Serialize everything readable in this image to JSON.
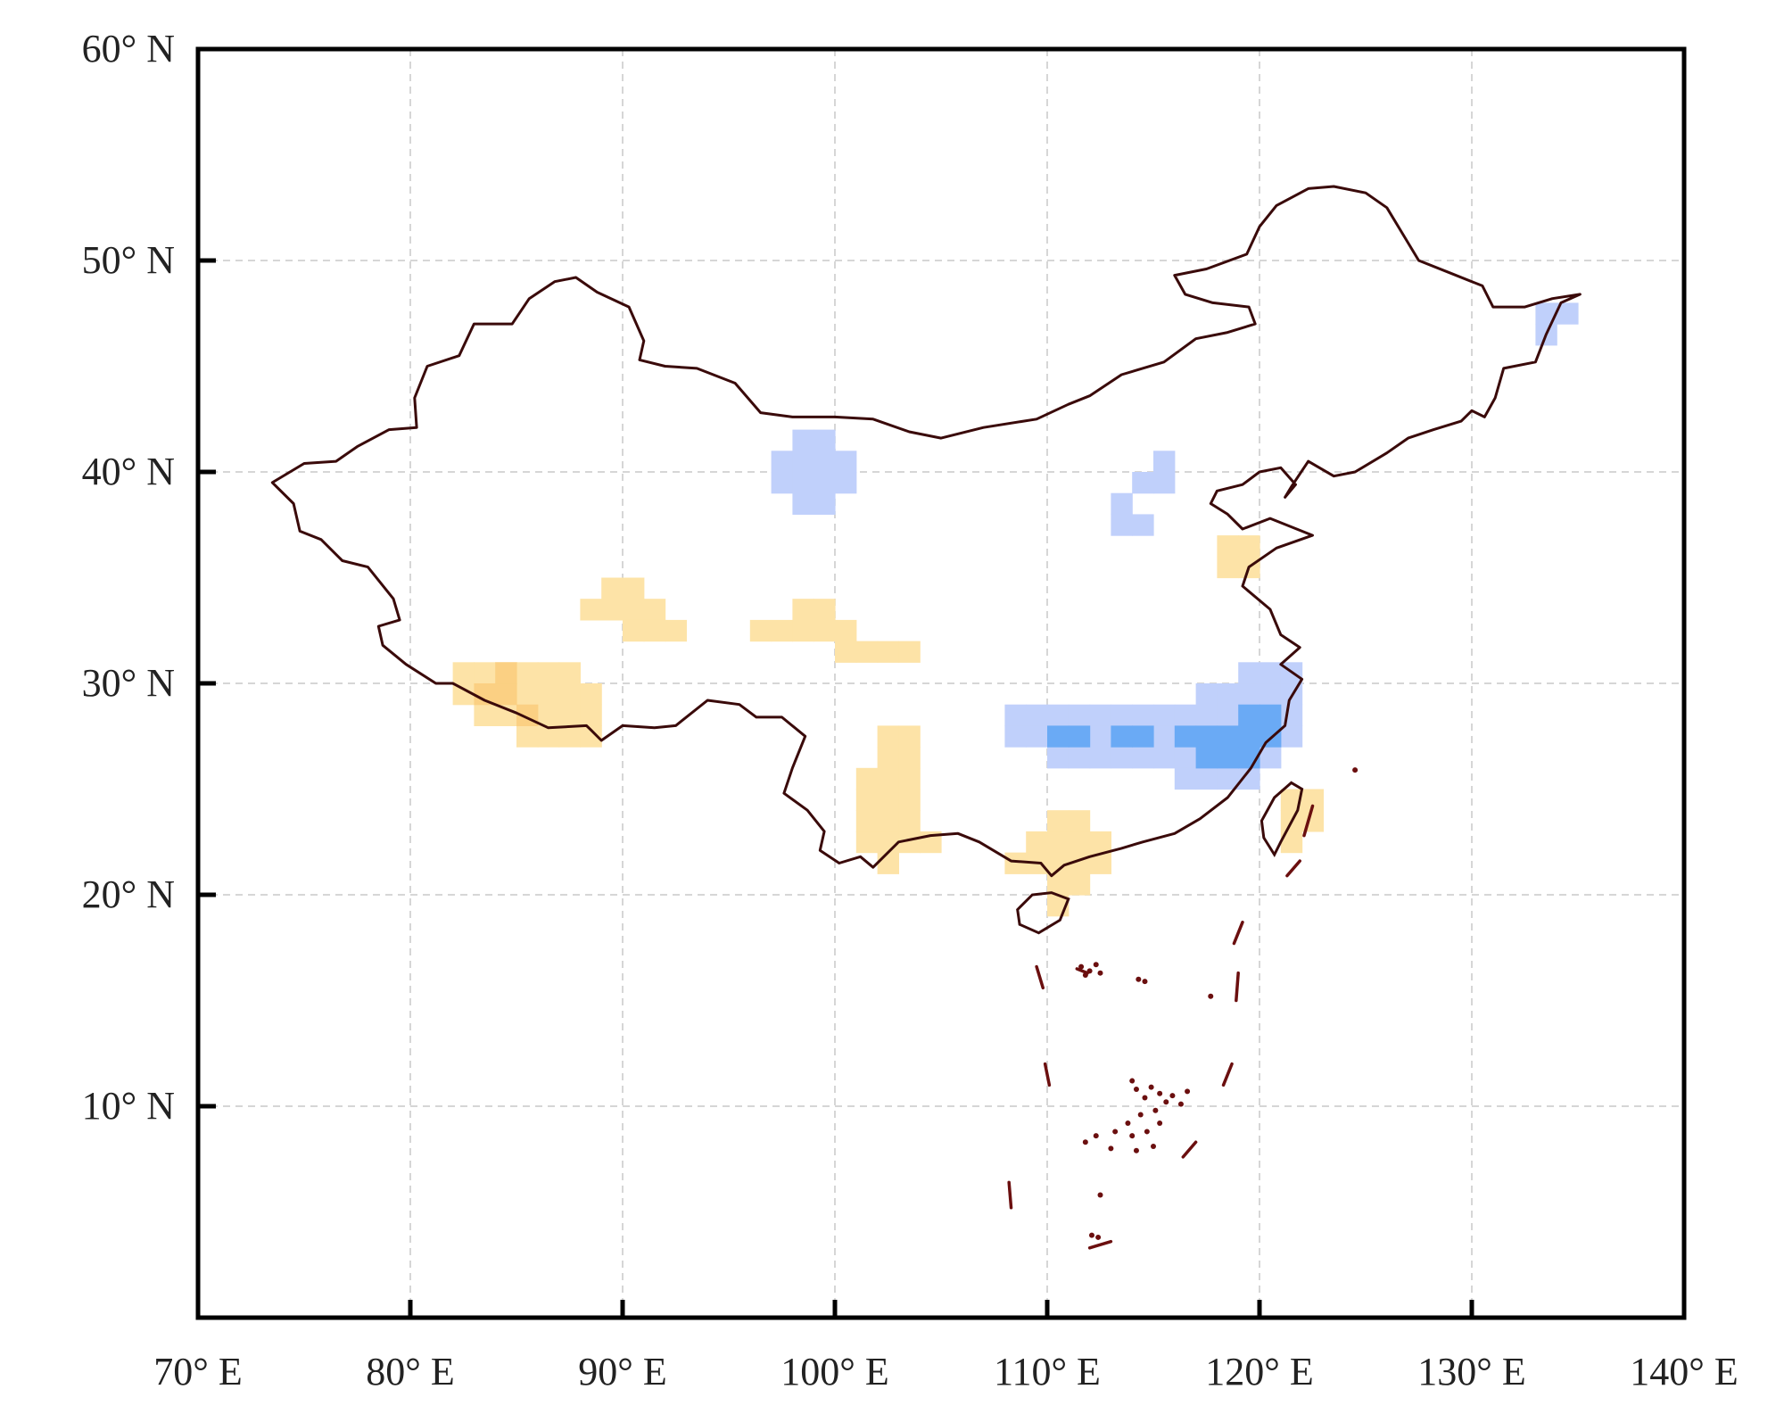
{
  "map": {
    "type": "map",
    "lon_range": [
      70,
      140
    ],
    "lat_range": [
      0,
      60
    ],
    "lat_axis": {
      "ticks": [
        10,
        20,
        30,
        40,
        50,
        60
      ],
      "labels": [
        "10° N",
        "20° N",
        "30° N",
        "40° N",
        "50° N",
        "60° N"
      ]
    },
    "lon_axis": {
      "ticks": [
        70,
        80,
        90,
        100,
        110,
        120,
        130,
        140
      ],
      "labels": [
        "70° E",
        "80° E",
        "90° E",
        "100° E",
        "110° E",
        "120° E",
        "130° E",
        "140° E"
      ]
    },
    "grid": true,
    "colors": {
      "border": "#3a0a0a",
      "island_lines": "#6b0f0f",
      "grid": "#c8c8c8",
      "frame": "#000000",
      "negative_light": "#c0d0fb",
      "negative_strong": "#6aaaf5",
      "positive_light": "#fde3a7",
      "positive_strong": "#fbd083"
    },
    "anomaly_patches": [
      {
        "sign": "negative",
        "level": "light",
        "cells": [
          [
            97,
            41
          ],
          [
            98,
            41
          ],
          [
            99,
            41
          ],
          [
            100,
            41
          ],
          [
            97,
            40
          ],
          [
            98,
            40
          ],
          [
            99,
            40
          ],
          [
            100,
            40
          ],
          [
            98,
            39
          ],
          [
            99,
            39
          ],
          [
            98,
            42
          ],
          [
            99,
            42
          ]
        ]
      },
      {
        "sign": "negative",
        "level": "light",
        "cells": [
          [
            113,
            38
          ],
          [
            114,
            38
          ],
          [
            113,
            39
          ],
          [
            114,
            40
          ],
          [
            115,
            41
          ],
          [
            115,
            40
          ]
        ]
      },
      {
        "sign": "negative",
        "level": "light",
        "cells": [
          [
            133,
            48
          ],
          [
            134,
            48
          ],
          [
            133,
            47
          ]
        ]
      },
      {
        "sign": "negative",
        "level": "light",
        "cells": [
          [
            108,
            29
          ],
          [
            109,
            29
          ],
          [
            110,
            29
          ],
          [
            111,
            29
          ],
          [
            112,
            29
          ],
          [
            113,
            29
          ],
          [
            114,
            29
          ],
          [
            115,
            29
          ],
          [
            116,
            29
          ],
          [
            117,
            29
          ],
          [
            118,
            29
          ],
          [
            119,
            29
          ],
          [
            120,
            29
          ],
          [
            121,
            29
          ],
          [
            108,
            28
          ],
          [
            109,
            28
          ],
          [
            110,
            28
          ],
          [
            111,
            28
          ],
          [
            112,
            28
          ],
          [
            113,
            28
          ],
          [
            114,
            28
          ],
          [
            115,
            28
          ],
          [
            116,
            28
          ],
          [
            117,
            28
          ],
          [
            118,
            28
          ],
          [
            119,
            28
          ],
          [
            120,
            28
          ],
          [
            121,
            28
          ],
          [
            110,
            27
          ],
          [
            111,
            27
          ],
          [
            112,
            27
          ],
          [
            113,
            27
          ],
          [
            114,
            27
          ],
          [
            115,
            27
          ],
          [
            116,
            27
          ],
          [
            117,
            27
          ],
          [
            118,
            27
          ],
          [
            119,
            27
          ],
          [
            120,
            27
          ],
          [
            116,
            26
          ],
          [
            117,
            26
          ],
          [
            118,
            26
          ],
          [
            119,
            26
          ],
          [
            117,
            30
          ],
          [
            118,
            30
          ],
          [
            119,
            30
          ],
          [
            120,
            30
          ],
          [
            121,
            30
          ],
          [
            119,
            31
          ],
          [
            120,
            31
          ],
          [
            121,
            31
          ]
        ]
      },
      {
        "sign": "negative",
        "level": "strong",
        "cells": [
          [
            110,
            28
          ],
          [
            111,
            28
          ],
          [
            113,
            28
          ],
          [
            114,
            28
          ],
          [
            116,
            28
          ],
          [
            117,
            28
          ],
          [
            118,
            28
          ],
          [
            119,
            28
          ],
          [
            120,
            28
          ],
          [
            117,
            27
          ],
          [
            118,
            27
          ],
          [
            119,
            27
          ],
          [
            119,
            29
          ],
          [
            120,
            29
          ]
        ]
      },
      {
        "sign": "positive",
        "level": "light",
        "cells": [
          [
            89,
            35
          ],
          [
            90,
            35
          ],
          [
            88,
            34
          ],
          [
            89,
            34
          ],
          [
            90,
            34
          ],
          [
            91,
            34
          ],
          [
            90,
            33
          ],
          [
            91,
            33
          ],
          [
            92,
            33
          ]
        ]
      },
      {
        "sign": "positive",
        "level": "light",
        "cells": [
          [
            96,
            33
          ],
          [
            97,
            33
          ],
          [
            98,
            33
          ],
          [
            99,
            33
          ],
          [
            100,
            33
          ],
          [
            98,
            34
          ],
          [
            99,
            34
          ],
          [
            100,
            32
          ],
          [
            101,
            32
          ],
          [
            102,
            32
          ],
          [
            103,
            32
          ]
        ]
      },
      {
        "sign": "positive",
        "level": "light",
        "cells": [
          [
            82,
            31
          ],
          [
            83,
            31
          ],
          [
            84,
            31
          ],
          [
            85,
            31
          ],
          [
            86,
            31
          ],
          [
            87,
            31
          ],
          [
            82,
            30
          ],
          [
            83,
            30
          ],
          [
            84,
            30
          ],
          [
            85,
            30
          ],
          [
            86,
            30
          ],
          [
            87,
            30
          ],
          [
            88,
            30
          ],
          [
            83,
            29
          ],
          [
            84,
            29
          ],
          [
            85,
            29
          ],
          [
            86,
            29
          ],
          [
            87,
            29
          ],
          [
            88,
            29
          ],
          [
            85,
            28
          ],
          [
            86,
            28
          ],
          [
            87,
            28
          ],
          [
            88,
            28
          ]
        ]
      },
      {
        "sign": "positive",
        "level": "strong",
        "cells": [
          [
            83,
            30
          ],
          [
            84,
            30
          ],
          [
            84,
            31
          ],
          [
            85,
            29
          ]
        ]
      },
      {
        "sign": "positive",
        "level": "light",
        "cells": [
          [
            102,
            28
          ],
          [
            103,
            28
          ],
          [
            102,
            27
          ],
          [
            103,
            27
          ],
          [
            101,
            26
          ],
          [
            102,
            26
          ],
          [
            103,
            26
          ],
          [
            101,
            25
          ],
          [
            102,
            25
          ],
          [
            103,
            25
          ],
          [
            101,
            24
          ],
          [
            102,
            24
          ],
          [
            103,
            24
          ],
          [
            101,
            23
          ],
          [
            102,
            23
          ],
          [
            103,
            23
          ],
          [
            102,
            22
          ],
          [
            104,
            23
          ]
        ]
      },
      {
        "sign": "positive",
        "level": "light",
        "cells": [
          [
            110,
            24
          ],
          [
            111,
            24
          ],
          [
            109,
            23
          ],
          [
            110,
            23
          ],
          [
            111,
            23
          ],
          [
            112,
            23
          ],
          [
            108,
            22
          ],
          [
            109,
            22
          ],
          [
            110,
            22
          ],
          [
            111,
            22
          ],
          [
            112,
            22
          ],
          [
            110,
            21
          ],
          [
            111,
            21
          ],
          [
            110,
            20
          ]
        ]
      },
      {
        "sign": "positive",
        "level": "light",
        "cells": [
          [
            118,
            37
          ],
          [
            119,
            37
          ],
          [
            118,
            36
          ],
          [
            119,
            36
          ]
        ]
      },
      {
        "sign": "positive",
        "level": "light",
        "cells": [
          [
            121,
            25
          ],
          [
            122,
            25
          ],
          [
            121,
            24
          ],
          [
            122,
            24
          ],
          [
            121,
            23
          ]
        ]
      }
    ]
  }
}
